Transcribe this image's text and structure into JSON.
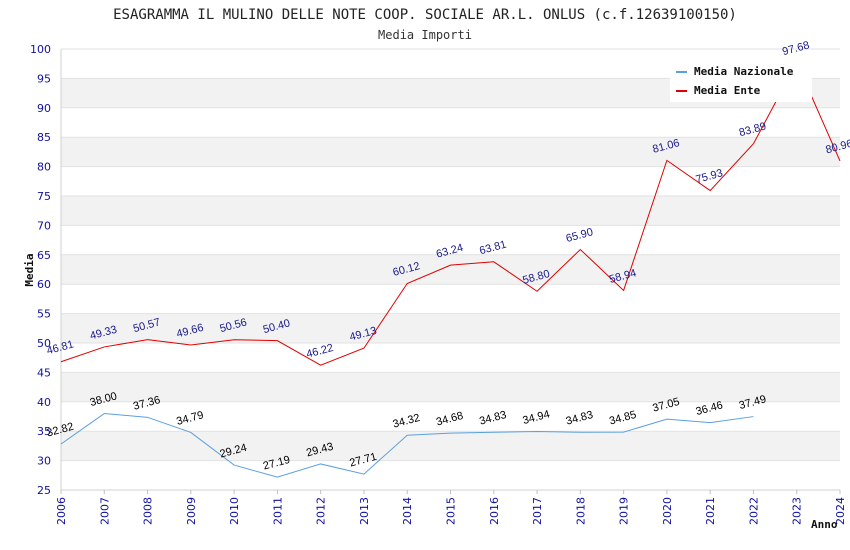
{
  "chart_data": {
    "type": "line",
    "title": "ESAGRAMMA IL MULINO DELLE NOTE COOP. SOCIALE AR.L. ONLUS (c.f.12639100150)",
    "subtitle": "Media Importi",
    "xlabel": "Anno",
    "ylabel": "Media",
    "ylim": [
      25,
      100
    ],
    "yticks": [
      "25",
      "30",
      "35",
      "40",
      "45",
      "50",
      "55",
      "60",
      "65",
      "70",
      "75",
      "80",
      "85",
      "90",
      "95",
      "100"
    ],
    "x": [
      "2006",
      "2007",
      "2008",
      "2009",
      "2010",
      "2011",
      "2012",
      "2013",
      "2014",
      "2015",
      "2016",
      "2017",
      "2018",
      "2019",
      "2020",
      "2021",
      "2022",
      "2023",
      "2024"
    ],
    "grid": true,
    "legend_position": "top-right",
    "series": [
      {
        "name": "Media Nazionale",
        "color": "#5aa0e0",
        "values": [
          32.82,
          38.0,
          37.36,
          34.79,
          29.24,
          27.19,
          29.43,
          27.71,
          34.32,
          34.68,
          34.83,
          34.94,
          34.83,
          34.85,
          37.05,
          36.46,
          37.49,
          null,
          null
        ],
        "labels": [
          "32.82",
          "38.00",
          "37.36",
          "34.79",
          "29.24",
          "27.19",
          "29.43",
          "27.71",
          "34.32",
          "34.68",
          "34.83",
          "34.94",
          "34.83",
          "34.85",
          "37.05",
          "36.46",
          "37.49",
          "",
          ""
        ]
      },
      {
        "name": "Media Ente",
        "color": "#e00000",
        "values": [
          46.81,
          49.33,
          50.57,
          49.66,
          50.56,
          50.4,
          46.22,
          49.13,
          60.12,
          63.24,
          63.81,
          58.8,
          65.9,
          58.94,
          81.06,
          75.93,
          83.89,
          97.68,
          80.96
        ],
        "labels": [
          "46.81",
          "49.33",
          "50.57",
          "49.66",
          "50.56",
          "50.40",
          "46.22",
          "49.13",
          "60.12",
          "63.24",
          "63.81",
          "58.80",
          "65.90",
          "58.94",
          "81.06",
          "75.93",
          "83.89",
          "97.68",
          "80.96"
        ]
      }
    ]
  }
}
